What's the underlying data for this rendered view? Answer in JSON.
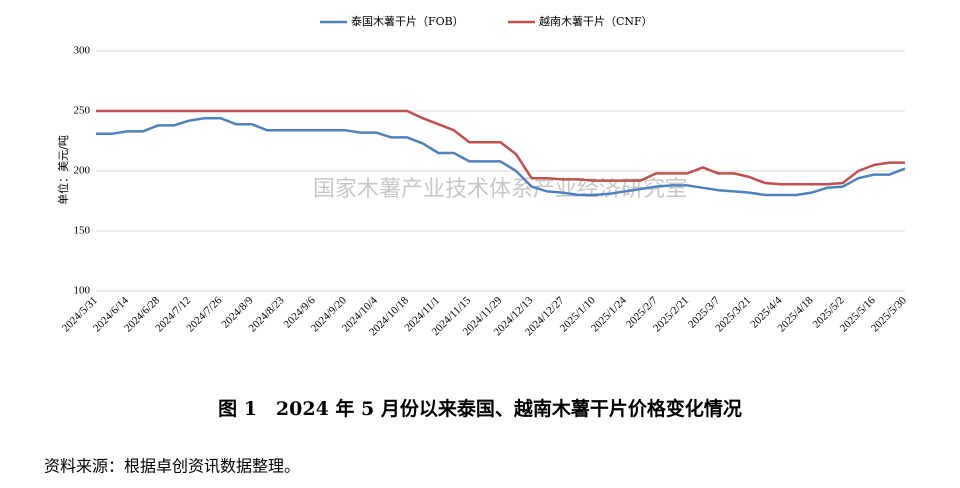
{
  "chart_data": {
    "type": "line",
    "title": "图 1　2024 年 5 月份以来泰国、越南木薯干片价格变化情况",
    "source": "资料来源：根据卓创资讯数据整理。",
    "watermark": "国家木薯产业技术体系产业经济研究室",
    "ylabel": "单位：美元/吨",
    "categories": [
      "2024/5/31",
      null,
      "2024/6/14",
      null,
      "2024/6/28",
      null,
      "2024/7/12",
      null,
      "2024/7/26",
      null,
      "2024/8/9",
      null,
      "2024/8/23",
      null,
      "2024/9/6",
      null,
      "2024/9/20",
      null,
      "2024/10/4",
      null,
      "2024/10/18",
      null,
      "2024/11/1",
      null,
      "2024/11/15",
      null,
      "2024/11/29",
      null,
      "2024/12/13",
      null,
      "2024/12/27",
      null,
      "2025/1/10",
      null,
      "2025/1/24",
      null,
      "2025/2/7",
      null,
      "2025/2/21",
      null,
      "2025/3/7",
      null,
      "2025/3/21",
      null,
      "2025/4/4",
      null,
      "2025/4/18",
      null,
      "2025/5/2",
      null,
      "2025/5/16",
      null,
      "2025/5/30"
    ],
    "series": [
      {
        "name": "泰国木薯干片（FOB）",
        "color": "#4f81bd",
        "values": [
          231,
          231,
          233,
          233,
          238,
          238,
          242,
          244,
          244,
          239,
          239,
          234,
          234,
          234,
          234,
          234,
          234,
          232,
          232,
          228,
          228,
          223,
          215,
          215,
          208,
          208,
          208,
          200,
          187,
          183,
          182,
          180,
          180,
          181,
          183,
          185,
          187,
          188,
          188,
          186,
          184,
          183,
          182,
          180,
          180,
          180,
          182,
          186,
          187,
          194,
          197,
          197,
          202
        ]
      },
      {
        "name": "越南木薯干片（CNF）",
        "color": "#c0504d",
        "values": [
          250,
          250,
          250,
          250,
          250,
          250,
          250,
          250,
          250,
          250,
          250,
          250,
          250,
          250,
          250,
          250,
          250,
          250,
          250,
          250,
          250,
          244,
          239,
          234,
          224,
          224,
          224,
          214,
          194,
          194,
          193,
          193,
          192,
          192,
          192,
          192,
          198,
          198,
          198,
          203,
          198,
          198,
          195,
          190,
          189,
          189,
          189,
          189,
          190,
          200,
          205,
          207,
          207
        ]
      }
    ],
    "ylim": [
      100,
      300
    ],
    "yticks": [
      100,
      150,
      200,
      250,
      300
    ],
    "grid": true
  }
}
